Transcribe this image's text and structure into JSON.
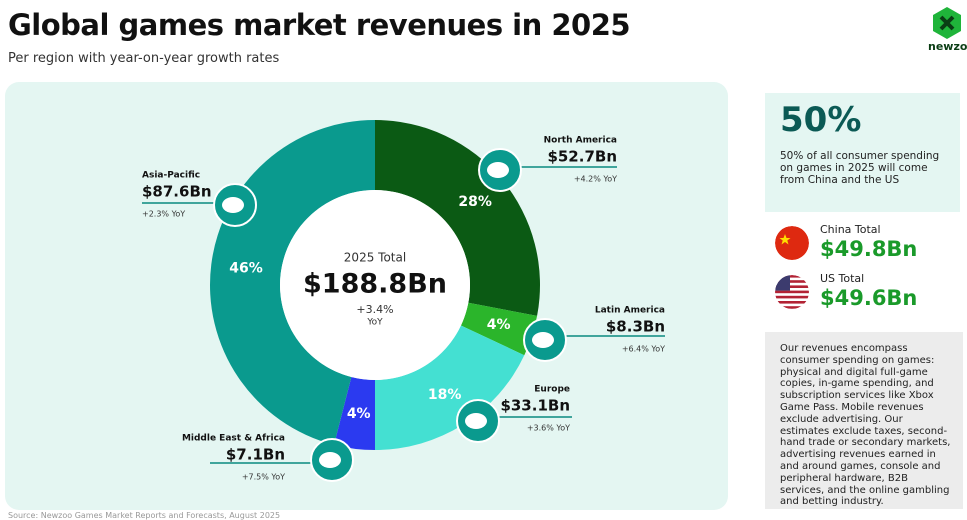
{
  "header": {
    "title": "Global games market revenues in 2025",
    "subtitle": "Per region with year-on-year growth rates",
    "brand": "newzoo"
  },
  "chart_data": {
    "type": "donut",
    "categories": [
      "North America",
      "Latin America",
      "Europe",
      "Middle East & Africa",
      "Asia-Pacific"
    ],
    "values": [
      28,
      4,
      18,
      4,
      46
    ],
    "value_labels": [
      "28%",
      "4%",
      "18%",
      "4%",
      "46%"
    ],
    "colors": [
      "#0b5a14",
      "#2bb52b",
      "#44e0d2",
      "#2b3af0",
      "#0a9a8e"
    ],
    "revenues": [
      "$52.7Bn",
      "$8.3Bn",
      "$33.1Bn",
      "$7.1Bn",
      "$87.6Bn"
    ],
    "growth": [
      "+4.2% YoY",
      "+6.4% YoY",
      "+3.6% YoY",
      "+7.5% YoY",
      "+2.3% YoY"
    ],
    "center": {
      "label": "2025 Total",
      "total": "$188.8Bn",
      "growth": "+3.4%",
      "growth_unit": "YoY"
    }
  },
  "side": {
    "headline": "50%",
    "headline_text": "50% of all consumer spending on games in 2025 will come from China and the US",
    "china_label": "China Total",
    "china_value": "$49.8Bn",
    "us_label": "US Total",
    "us_value": "$49.6Bn",
    "note": "Our revenues encompass consumer spending on games: physical and digital full-game copies, in-game spending, and subscription services like Xbox Game Pass. Mobile revenues exclude advertising. Our estimates exclude taxes, second-hand trade or secondary markets, advertising revenues earned in and around games, console and peripheral hardware, B2B services, and the online gambling and betting industry."
  },
  "source": "Source: Newzoo Games Market Reports and Forecasts, August 2025"
}
